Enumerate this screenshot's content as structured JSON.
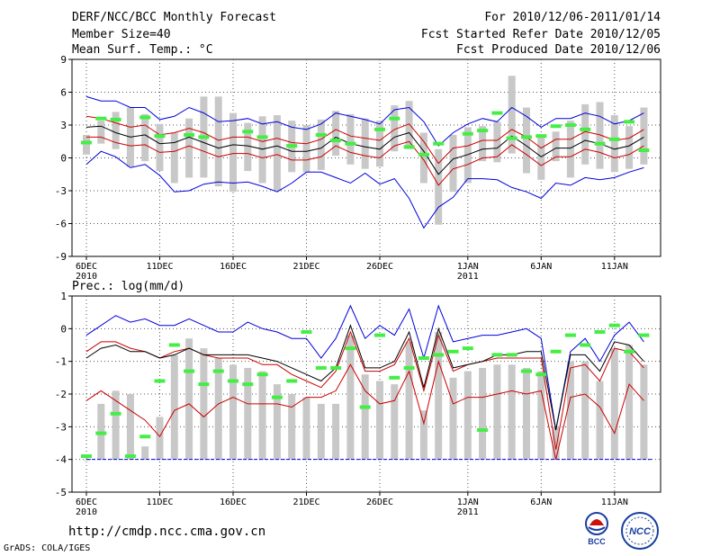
{
  "header": {
    "title": "DERF/NCC/BCC Monthly Forecast",
    "member_size": "Member Size=40",
    "variable": "Mean Surf. Temp.: °C",
    "forecast_for": "For 2010/12/06-2011/01/14",
    "started_refer": "Fcst Started Refer Date 2010/12/05",
    "produced": "Fcst Produced Date 2010/12/06"
  },
  "footer": {
    "url": "http://cmdp.ncc.cma.gov.cn",
    "grads": "GrADS: COLA/IGES",
    "logo_left_text": "BCC",
    "logo_right_text": "NCC"
  },
  "colors": {
    "envelope": "#0000dd",
    "mean": "#000000",
    "spread": "#cc0000",
    "bar": "#c8c8c8",
    "obs": "#44ee44",
    "floor": "#0000dd",
    "grid": "#555555"
  },
  "chart_data": [
    {
      "type": "box",
      "title": "Mean Surf. Temp.: °C",
      "ylim": [
        -9,
        9
      ],
      "yticks": [
        -9,
        -6,
        -3,
        0,
        3,
        6,
        9
      ],
      "xlim": [
        0,
        40
      ],
      "xticks": [
        {
          "day": 1,
          "label": "6DEC",
          "year": "2010"
        },
        {
          "day": 6,
          "label": "11DEC",
          "year": ""
        },
        {
          "day": 11,
          "label": "16DEC",
          "year": ""
        },
        {
          "day": 16,
          "label": "21DEC",
          "year": ""
        },
        {
          "day": 21,
          "label": "26DEC",
          "year": ""
        },
        {
          "day": 27,
          "label": "1JAN",
          "year": "2011"
        },
        {
          "day": 32,
          "label": "6JAN",
          "year": ""
        },
        {
          "day": 37,
          "label": "11JAN",
          "year": ""
        }
      ],
      "series": [
        {
          "name": "ensemble max",
          "style": "envelope",
          "values": [
            5.6,
            5.2,
            5.2,
            4.6,
            4.6,
            3.5,
            3.8,
            4.6,
            4.1,
            3.3,
            3.4,
            3.6,
            3.1,
            3.3,
            2.8,
            2.6,
            3.1,
            4.1,
            3.8,
            3.5,
            3.1,
            4.4,
            4.6,
            3.3,
            1.1,
            2.3,
            3.1,
            3.6,
            3.3,
            4.6,
            3.8,
            2.8,
            3.6,
            3.6,
            4.1,
            3.8,
            3.1,
            3.4,
            4.1,
            2.3,
            1.5,
            1.1
          ]
        },
        {
          "name": "upper spread",
          "style": "spread",
          "values": [
            3.8,
            3.6,
            3.2,
            2.8,
            3.0,
            2.1,
            2.3,
            2.7,
            2.3,
            1.6,
            1.9,
            1.9,
            1.5,
            1.8,
            1.4,
            1.3,
            1.7,
            2.6,
            2.0,
            1.8,
            1.6,
            2.6,
            3.1,
            1.5,
            -0.5,
            0.9,
            1.1,
            1.6,
            1.6,
            2.6,
            1.9,
            0.9,
            1.7,
            1.7,
            2.4,
            2.1,
            1.6,
            1.8,
            2.6,
            1.0,
            0.1,
            0.3
          ]
        },
        {
          "name": "ensemble mean",
          "style": "mean",
          "values": [
            2.8,
            2.9,
            2.3,
            1.9,
            2.1,
            1.3,
            1.4,
            1.9,
            1.4,
            0.9,
            1.2,
            1.1,
            0.8,
            1.1,
            0.6,
            0.6,
            0.9,
            1.9,
            1.3,
            1.0,
            0.8,
            1.9,
            2.3,
            0.6,
            -1.5,
            -0.1,
            0.3,
            0.8,
            0.9,
            2.0,
            1.1,
            0.1,
            0.9,
            0.9,
            1.6,
            1.3,
            0.8,
            1.1,
            1.9,
            0.2,
            -0.5,
            -0.5
          ]
        },
        {
          "name": "lower spread",
          "style": "spread",
          "values": [
            1.9,
            1.9,
            1.4,
            1.1,
            1.2,
            0.5,
            0.6,
            1.1,
            0.6,
            0.1,
            0.4,
            0.4,
            0.0,
            0.3,
            -0.2,
            -0.2,
            0.1,
            1.1,
            0.5,
            0.2,
            0.0,
            1.1,
            1.5,
            -0.2,
            -2.5,
            -1.0,
            -0.6,
            0.0,
            0.1,
            1.2,
            0.3,
            -0.7,
            0.1,
            0.1,
            0.8,
            0.5,
            0.0,
            0.3,
            1.1,
            -0.6,
            -1.4,
            -1.4
          ]
        },
        {
          "name": "ensemble min",
          "style": "envelope",
          "values": [
            -0.6,
            0.6,
            0.1,
            -0.9,
            -0.6,
            -1.6,
            -3.1,
            -3.0,
            -2.4,
            -2.2,
            -2.3,
            -2.2,
            -2.6,
            -3.1,
            -2.3,
            -1.3,
            -1.3,
            -1.8,
            -2.3,
            -1.4,
            -2.4,
            -1.9,
            -3.7,
            -6.4,
            -4.5,
            -3.6,
            -1.9,
            -1.9,
            -2.0,
            -2.7,
            -3.1,
            -3.7,
            -2.3,
            -2.5,
            -1.8,
            -2.0,
            -1.8,
            -1.3,
            -0.9,
            -2.5,
            -3.3,
            -3.3
          ]
        }
      ],
      "bars": {
        "lo": [
          0.3,
          1.3,
          0.8,
          -0.8,
          -0.3,
          -1.2,
          -2.3,
          -1.8,
          -1.8,
          -2.6,
          -3.1,
          -1.2,
          -2.3,
          -3.0,
          -1.3,
          -1.3,
          -1.1,
          0.2,
          -0.6,
          -1.0,
          -0.8,
          0.6,
          0.8,
          -2.3,
          -6.1,
          -3.1,
          -2.3,
          -0.3,
          -0.4,
          0.4,
          -1.4,
          -2.0,
          -0.3,
          -1.8,
          -0.6,
          -1.0,
          -1.3,
          -1.0,
          -0.6,
          -2.3,
          -3.1,
          -3.0
        ],
        "hi": [
          2.1,
          3.4,
          4.2,
          4.6,
          4.0,
          3.1,
          2.3,
          3.6,
          5.6,
          5.6,
          4.1,
          3.2,
          3.8,
          3.9,
          3.4,
          3.0,
          3.5,
          4.3,
          4.0,
          3.6,
          3.4,
          4.8,
          5.2,
          2.3,
          0.8,
          2.1,
          2.8,
          2.9,
          3.3,
          7.5,
          4.6,
          1.9,
          2.4,
          3.4,
          4.9,
          5.1,
          3.9,
          2.9,
          4.6,
          2.8,
          1.4,
          2.3
        ]
      },
      "observed": [
        1.4,
        3.6,
        3.5,
        null,
        3.7,
        2.0,
        null,
        2.1,
        1.9,
        null,
        null,
        2.4,
        1.9,
        null,
        1.1,
        null,
        2.1,
        1.6,
        1.3,
        null,
        2.6,
        3.6,
        1.0,
        0.3,
        1.3,
        null,
        2.2,
        2.5,
        4.1,
        1.8,
        1.9,
        2.0,
        2.9,
        3.0,
        2.6,
        1.3,
        1.7,
        3.3,
        0.7,
        0.1,
        0.5,
        null
      ]
    },
    {
      "type": "box",
      "title": "Prec.: log(mm/d)",
      "ylim": [
        -5,
        1
      ],
      "yticks": [
        -5,
        -4,
        -3,
        -2,
        -1,
        0,
        1
      ],
      "xlim": [
        0,
        40
      ],
      "floor": -4,
      "xticks": [
        {
          "day": 1,
          "label": "6DEC",
          "year": "2010"
        },
        {
          "day": 6,
          "label": "11DEC",
          "year": ""
        },
        {
          "day": 11,
          "label": "16DEC",
          "year": ""
        },
        {
          "day": 16,
          "label": "21DEC",
          "year": ""
        },
        {
          "day": 21,
          "label": "26DEC",
          "year": ""
        },
        {
          "day": 27,
          "label": "1JAN",
          "year": "2011"
        },
        {
          "day": 32,
          "label": "6JAN",
          "year": ""
        },
        {
          "day": 37,
          "label": "11JAN",
          "year": ""
        }
      ],
      "series": [
        {
          "name": "ensemble max",
          "style": "envelope",
          "values": [
            -0.2,
            0.1,
            0.4,
            0.2,
            0.3,
            0.1,
            0.1,
            0.3,
            0.1,
            -0.1,
            -0.1,
            0.2,
            0.0,
            -0.1,
            -0.3,
            -0.3,
            -0.9,
            -0.3,
            0.7,
            -0.3,
            0.1,
            -0.2,
            0.6,
            -0.9,
            0.7,
            -0.4,
            -0.3,
            -0.2,
            -0.2,
            -0.1,
            0.0,
            -0.3,
            -3.1,
            -0.7,
            -0.3,
            -1.0,
            -0.2,
            0.2,
            -0.4,
            0.3,
            0.4,
            0.5,
            0.1,
            0.3,
            0.0
          ]
        },
        {
          "name": "upper spread",
          "style": "spread",
          "values": [
            -0.7,
            -0.4,
            -0.4,
            -0.6,
            -0.7,
            -0.9,
            -0.7,
            -0.6,
            -0.8,
            -0.9,
            -0.9,
            -0.9,
            -1.1,
            -1.1,
            -1.4,
            -1.6,
            -1.8,
            -1.3,
            -0.1,
            -1.3,
            -1.3,
            -1.1,
            -0.3,
            -1.9,
            -0.2,
            -1.3,
            -1.1,
            -1.0,
            -0.9,
            -0.9,
            -0.9,
            -0.9,
            -3.7,
            -1.2,
            -1.1,
            -1.6,
            -0.6,
            -0.7,
            -1.2,
            -0.6,
            -0.4,
            -0.4,
            -0.8,
            -0.6,
            -0.9
          ]
        },
        {
          "name": "ensemble mean",
          "style": "mean",
          "values": [
            -0.9,
            -0.6,
            -0.5,
            -0.7,
            -0.7,
            -0.9,
            -0.8,
            -0.6,
            -0.8,
            -0.8,
            -0.8,
            -0.8,
            -0.9,
            -1.0,
            -1.2,
            -1.4,
            -1.6,
            -1.2,
            0.1,
            -1.2,
            -1.2,
            -1.0,
            -0.1,
            -1.8,
            0.0,
            -1.2,
            -1.1,
            -1.0,
            -0.8,
            -0.8,
            -0.7,
            -0.7,
            -3.1,
            -0.8,
            -0.8,
            -1.3,
            -0.4,
            -0.5,
            -1.0,
            -0.4,
            -0.2,
            -0.1,
            -0.6,
            -0.3,
            -0.6
          ]
        },
        {
          "name": "lower spread",
          "style": "spread",
          "values": [
            -2.2,
            -1.9,
            -2.2,
            -2.5,
            -2.8,
            -3.3,
            -2.5,
            -2.3,
            -2.7,
            -2.3,
            -2.1,
            -2.3,
            -2.3,
            -2.3,
            -2.4,
            -2.1,
            -2.1,
            -1.9,
            -1.1,
            -1.9,
            -2.3,
            -2.2,
            -1.3,
            -2.9,
            -1.0,
            -2.3,
            -2.1,
            -2.1,
            -2.0,
            -1.9,
            -2.0,
            -1.9,
            -4.0,
            -2.1,
            -2.0,
            -2.4,
            -3.2,
            -1.7,
            -2.2,
            -1.7,
            -1.4,
            -1.5,
            -2.2,
            -1.8,
            -1.9
          ]
        }
      ],
      "bars": {
        "lo": [
          -4.0,
          -4.0,
          -4.0,
          -4.0,
          -4.0,
          -4.0,
          -4.0,
          -4.0,
          -4.0,
          -4.0,
          -4.0,
          -4.0,
          -4.0,
          -4.0,
          -4.0,
          -4.0,
          -4.0,
          -4.0,
          -4.0,
          -4.0,
          -4.0,
          -4.0,
          -4.0,
          -4.0,
          -4.0,
          -4.0,
          -4.0,
          -4.0,
          -4.0,
          -4.0,
          -4.0,
          -4.0,
          -4.0,
          -4.0,
          -4.0,
          -4.0,
          -4.0,
          -4.0,
          -4.0,
          -4.0,
          -4.0,
          -4.0,
          -4.0,
          -4.0,
          -4.0
        ],
        "hi": [
          -4.0,
          -2.3,
          -1.9,
          -2.0,
          -3.6,
          -2.7,
          -0.8,
          -0.3,
          -0.6,
          -0.9,
          -1.1,
          -1.2,
          -1.3,
          -1.7,
          -2.0,
          -2.1,
          -2.3,
          -2.3,
          -0.2,
          -1.4,
          -1.6,
          -1.7,
          -0.4,
          -2.5,
          -0.1,
          -1.5,
          -1.3,
          -1.2,
          -1.1,
          -1.1,
          -1.2,
          -1.3,
          -3.0,
          -1.0,
          -1.0,
          -1.6,
          -0.6,
          -0.5,
          -1.1,
          -0.6,
          -0.4,
          -0.4,
          -0.8,
          -0.4,
          -0.7
        ]
      },
      "observed": [
        -3.9,
        -3.2,
        -2.6,
        -3.9,
        -3.3,
        -1.6,
        -0.5,
        -1.3,
        -1.7,
        -1.3,
        -1.6,
        -1.7,
        -1.4,
        -2.1,
        -1.6,
        -0.1,
        -1.2,
        -1.2,
        -0.6,
        -2.4,
        -0.2,
        -1.5,
        -1.2,
        -0.9,
        -0.8,
        -0.7,
        -0.6,
        -3.1,
        -0.8,
        -0.8,
        -1.3,
        -1.4,
        -0.7,
        -0.2,
        -0.5,
        -0.1,
        0.1,
        -0.7,
        -0.2,
        -0.6,
        null,
        null,
        null,
        null,
        null
      ]
    }
  ]
}
